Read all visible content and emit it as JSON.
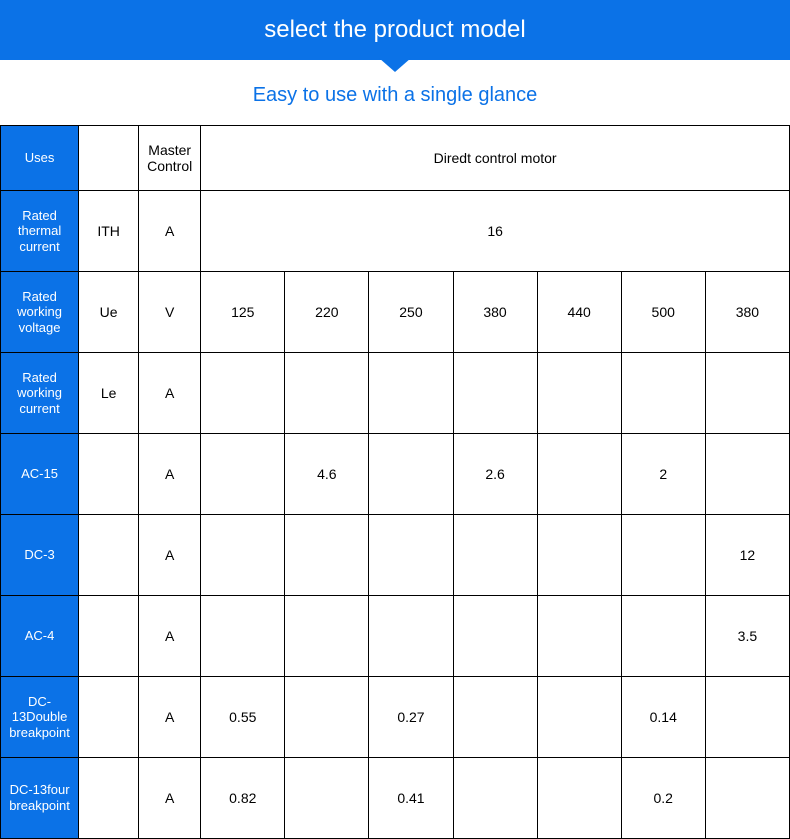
{
  "banner": {
    "title": "select the product model"
  },
  "subtitle": "Easy to use with a single glance",
  "table": {
    "header": {
      "uses": "Uses",
      "blank": "",
      "master_control": "Master Control",
      "direct_control": "Diredt control motor"
    },
    "rows": [
      {
        "label": "Rated thermal current",
        "c2": "ITH",
        "c3": "A",
        "span_value": "16"
      },
      {
        "label": "Rated working voltage",
        "c2": "Ue",
        "c3": "V",
        "cells": [
          "125",
          "220",
          "250",
          "380",
          "440",
          "500",
          "380"
        ]
      },
      {
        "label": "Rated working current",
        "c2": "Le",
        "c3": "A",
        "cells": [
          "",
          "",
          "",
          "",
          "",
          "",
          ""
        ]
      },
      {
        "label": "AC-15",
        "c2": "",
        "c3": "A",
        "cells": [
          "",
          "4.6",
          "",
          "2.6",
          "",
          "2",
          ""
        ]
      },
      {
        "label": "DC-3",
        "c2": "",
        "c3": "A",
        "cells": [
          "",
          "",
          "",
          "",
          "",
          "",
          "12"
        ]
      },
      {
        "label": "AC-4",
        "c2": "",
        "c3": "A",
        "cells": [
          "",
          "",
          "",
          "",
          "",
          "",
          "3.5"
        ]
      },
      {
        "label": "DC-13Double breakpoint",
        "c2": "",
        "c3": "A",
        "cells": [
          "0.55",
          "",
          "0.27",
          "",
          "",
          "0.14",
          ""
        ]
      },
      {
        "label": "DC-13four breakpoint",
        "c2": "",
        "c3": "A",
        "cells": [
          "0.82",
          "",
          "0.41",
          "",
          "",
          "0.2",
          ""
        ]
      }
    ]
  },
  "colors": {
    "brand": "#0b72e7",
    "text_on_brand": "#ffffff",
    "border": "#000000",
    "background": "#ffffff"
  }
}
